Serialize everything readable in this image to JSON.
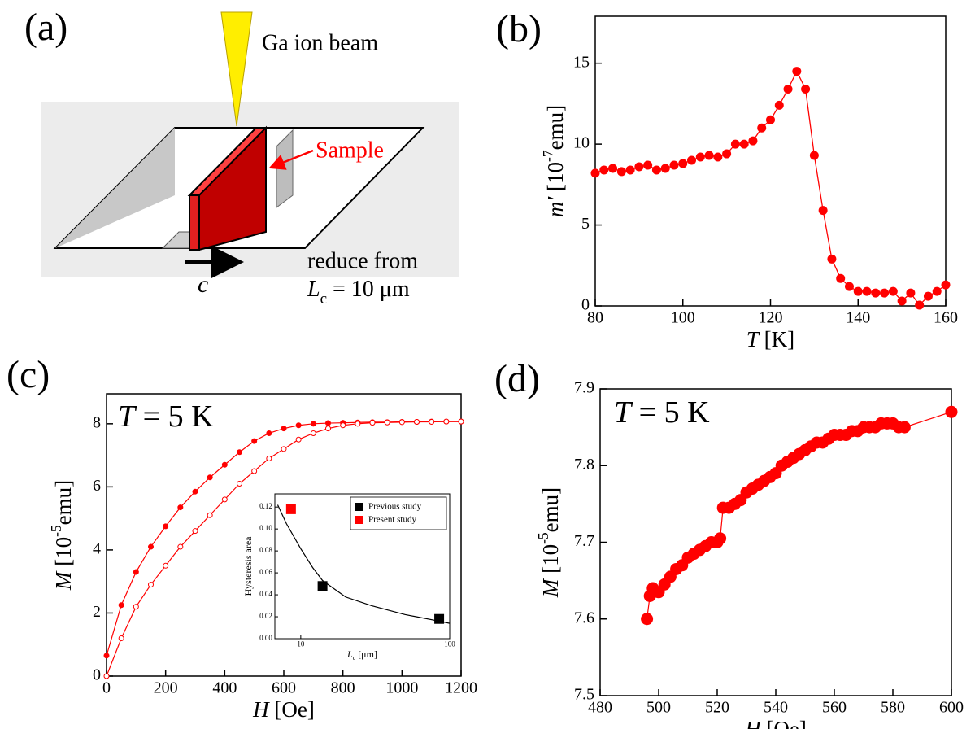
{
  "diagram": {
    "panel": "(a)",
    "beam": "Ga ion beam",
    "sample": "Sample",
    "reduce": "reduce from",
    "length": [
      "L",
      "c",
      " = 10 μm"
    ],
    "axis": "c"
  },
  "chart_data": [
    {
      "type": "line",
      "panel": "(b)",
      "xlabel": [
        "T",
        " [K]"
      ],
      "ylabel": [
        "m′",
        " [10",
        "-7",
        "emu]"
      ],
      "xlim": [
        80,
        160
      ],
      "ylim": [
        0,
        17.9
      ],
      "xticks": [
        80,
        100,
        120,
        140,
        160
      ],
      "yticks": [
        0,
        5,
        10,
        15
      ],
      "series": [
        {
          "color": "#ff0000",
          "marker": "filled",
          "x": [
            80,
            82,
            84,
            86,
            88,
            90,
            92,
            94,
            96,
            98,
            100,
            102,
            104,
            106,
            108,
            110,
            112,
            114,
            116,
            118,
            120,
            122,
            124,
            126,
            128,
            130,
            132,
            134,
            136,
            138,
            140,
            142,
            144,
            146,
            148,
            150,
            152,
            154,
            156,
            158,
            160
          ],
          "values": [
            8.2,
            8.4,
            8.5,
            8.3,
            8.4,
            8.6,
            8.7,
            8.4,
            8.5,
            8.7,
            8.8,
            9.0,
            9.2,
            9.3,
            9.2,
            9.4,
            10.0,
            10.0,
            10.2,
            11.0,
            11.5,
            12.4,
            13.4,
            14.5,
            13.4,
            9.3,
            5.9,
            2.9,
            1.7,
            1.2,
            0.9,
            0.9,
            0.8,
            0.8,
            0.9,
            0.3,
            0.8,
            0.05,
            0.6,
            0.9,
            1.3
          ]
        }
      ]
    },
    {
      "type": "line",
      "panel": "(c)",
      "annotation": [
        "T",
        " = 5 K"
      ],
      "xlabel": [
        "H",
        " [Oe]"
      ],
      "ylabel": [
        "M",
        " [10",
        "-5",
        "emu]"
      ],
      "xlim": [
        0,
        1200
      ],
      "ylim": [
        0,
        8.95
      ],
      "xticks": [
        0,
        200,
        400,
        600,
        800,
        1000,
        1200
      ],
      "yticks": [
        0,
        2,
        4,
        6,
        8
      ],
      "series": [
        {
          "color": "#ff0000",
          "marker": "filled",
          "x": [
            0,
            50,
            100,
            150,
            200,
            250,
            300,
            350,
            400,
            450,
            500,
            550,
            600,
            650,
            700,
            750,
            800,
            850,
            900,
            950,
            1000,
            1050,
            1100,
            1150,
            1200
          ],
          "values": [
            0.65,
            2.25,
            3.3,
            4.1,
            4.75,
            5.35,
            5.85,
            6.3,
            6.7,
            7.1,
            7.45,
            7.7,
            7.85,
            7.95,
            8.0,
            8.02,
            8.03,
            8.04,
            8.05,
            8.05,
            8.06,
            8.06,
            8.07,
            8.07,
            8.07
          ]
        },
        {
          "color": "#ff0000",
          "marker": "open",
          "x": [
            0,
            50,
            100,
            150,
            200,
            250,
            300,
            350,
            400,
            450,
            500,
            550,
            600,
            650,
            700,
            750,
            800,
            850,
            900,
            950,
            1000,
            1050,
            1100,
            1150,
            1200
          ],
          "values": [
            0,
            1.2,
            2.2,
            2.9,
            3.5,
            4.1,
            4.6,
            5.1,
            5.6,
            6.1,
            6.5,
            6.9,
            7.2,
            7.5,
            7.7,
            7.85,
            7.95,
            8.0,
            8.03,
            8.04,
            8.05,
            8.06,
            8.06,
            8.07,
            8.07
          ]
        }
      ]
    },
    {
      "type": "scatter",
      "xscale": "log",
      "legend": "upper right",
      "xlabel": [
        "L",
        "c",
        " [μm]"
      ],
      "ylabel": "Hysteresis area",
      "xlim": [
        6.7,
        100
      ],
      "ylim": [
        0,
        0.132
      ],
      "xticks": [
        10,
        100
      ],
      "yticks": [
        {
          "value": 0,
          "label": "0.00"
        },
        {
          "value": 0.02,
          "label": "0.02"
        },
        {
          "value": 0.04,
          "label": "0.04"
        },
        {
          "value": 0.06,
          "label": "0.06"
        },
        {
          "value": 0.08,
          "label": "0.08"
        },
        {
          "value": 0.1,
          "label": "0.10"
        },
        {
          "value": 0.12,
          "label": "0.12"
        }
      ],
      "series": [
        {
          "color": "#000000",
          "marker": "none",
          "x": [
            7,
            8,
            10,
            12,
            14,
            20,
            30,
            50,
            85,
            100
          ],
          "values": [
            0.122,
            0.105,
            0.082,
            0.065,
            0.053,
            0.038,
            0.03,
            0.022,
            0.016,
            0.014
          ]
        },
        {
          "name": "Previous study",
          "color": "#000000",
          "marker": "square",
          "x": [
            14,
            85
          ],
          "values": [
            0.048,
            0.018
          ]
        },
        {
          "name": "Present study",
          "color": "#ff0000",
          "marker": "square",
          "x": [
            8.6
          ],
          "values": [
            0.118
          ]
        }
      ]
    },
    {
      "type": "line",
      "panel": "(d)",
      "annotation": [
        "T",
        " = 5 K"
      ],
      "xlabel": [
        "H",
        " [Oe]"
      ],
      "ylabel": [
        "M",
        " [10",
        "-5",
        "emu]"
      ],
      "xlim": [
        480,
        600
      ],
      "ylim": [
        7.5,
        7.9
      ],
      "xticks": [
        480,
        500,
        520,
        540,
        560,
        580,
        600
      ],
      "yticks": [
        7.5,
        7.6,
        7.7,
        7.8,
        7.9
      ],
      "series": [
        {
          "color": "#ff0000",
          "marker": "filled",
          "x": [
            496,
            497,
            498,
            500,
            502,
            504,
            506,
            508,
            510,
            512,
            514,
            516,
            518,
            520,
            521,
            522,
            524,
            526,
            528,
            530,
            532,
            534,
            536,
            538,
            540,
            542,
            544,
            546,
            548,
            550,
            552,
            554,
            556,
            558,
            560,
            562,
            564,
            566,
            568,
            570,
            572,
            574,
            576,
            578,
            580,
            582,
            584,
            600
          ],
          "values": [
            7.6,
            7.63,
            7.64,
            7.635,
            7.645,
            7.655,
            7.665,
            7.67,
            7.68,
            7.685,
            7.69,
            7.695,
            7.7,
            7.7,
            7.705,
            7.745,
            7.745,
            7.75,
            7.755,
            7.765,
            7.77,
            7.775,
            7.78,
            7.785,
            7.79,
            7.8,
            7.805,
            7.81,
            7.815,
            7.82,
            7.825,
            7.83,
            7.83,
            7.835,
            7.84,
            7.84,
            7.84,
            7.845,
            7.845,
            7.85,
            7.85,
            7.85,
            7.855,
            7.855,
            7.855,
            7.85,
            7.85,
            7.87
          ]
        }
      ]
    }
  ]
}
